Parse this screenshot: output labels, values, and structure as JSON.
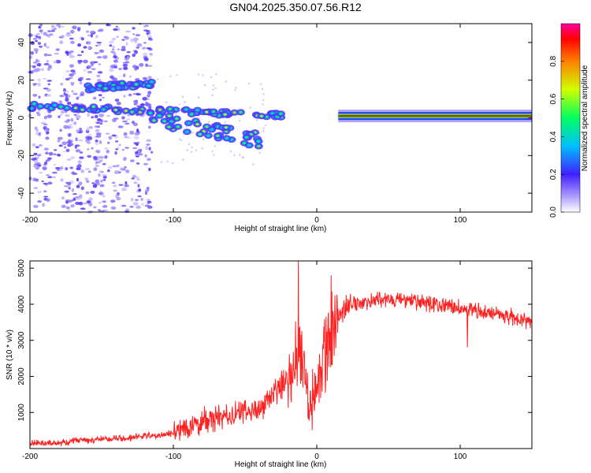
{
  "title": "GN04.2025.350.07.56.R12",
  "chart_data": [
    {
      "type": "heatmap",
      "xlabel": "Height of straight line (km)",
      "ylabel": "Frequency (Hz)",
      "xlim": [
        -200,
        150
      ],
      "ylim": [
        -50,
        50
      ],
      "xticks": [
        -200,
        -100,
        0,
        100
      ],
      "yticks": [
        -40,
        -20,
        0,
        20,
        40
      ],
      "colorbar": {
        "label": "Normalized spectral amplitude",
        "range": [
          0,
          1
        ],
        "ticks": [
          "0.0",
          "0.2",
          "0.4",
          "0.6",
          "0.8"
        ]
      },
      "features": [
        {
          "name": "noise-band",
          "x": [
            -200,
            -115
          ],
          "y": [
            -50,
            50
          ],
          "amplitude": 0.08
        },
        {
          "name": "upper-track",
          "x": [
            -160,
            -115
          ],
          "y": [
            16,
            18
          ],
          "amplitude": 0.45
        },
        {
          "name": "main-track",
          "x": [
            -200,
            -20
          ],
          "y": [
            6,
            1
          ],
          "amplitude": 0.55
        },
        {
          "name": "lower-branch",
          "x": [
            -115,
            -40
          ],
          "y": [
            -1,
            -12
          ],
          "amplitude": 0.5
        },
        {
          "name": "steady-line",
          "x": [
            15,
            150
          ],
          "y": [
            1,
            1
          ],
          "amplitude": 0.9
        }
      ]
    },
    {
      "type": "line",
      "xlabel": "Height of straight line (km)",
      "ylabel": "SNR (10 * v/v)",
      "xlim": [
        -200,
        150
      ],
      "ylim": [
        0,
        5200
      ],
      "xticks": [
        -200,
        -100,
        0,
        100
      ],
      "yticks": [
        1000,
        2000,
        3000,
        4000,
        5000
      ],
      "color": "#ff2020",
      "series": [
        {
          "name": "SNR",
          "x": [
            -200,
            -180,
            -165,
            -150,
            -130,
            -120,
            -110,
            -100,
            -90,
            -80,
            -70,
            -60,
            -50,
            -40,
            -30,
            -20,
            -15,
            -12,
            -8,
            -5,
            0,
            5,
            10,
            15,
            20,
            25,
            30,
            40,
            50,
            60,
            70,
            80,
            90,
            100,
            105,
            110,
            120,
            130,
            140,
            150
          ],
          "y": [
            150,
            150,
            250,
            250,
            300,
            350,
            350,
            450,
            600,
            750,
            850,
            900,
            1000,
            1100,
            1500,
            2000,
            2500,
            3000,
            2000,
            1500,
            1600,
            2500,
            3200,
            3700,
            3900,
            4000,
            4050,
            4100,
            4150,
            4100,
            4050,
            4000,
            3950,
            3900,
            3800,
            3850,
            3750,
            3700,
            3600,
            3500
          ]
        }
      ],
      "spikes": [
        {
          "x": -13,
          "y": 5200
        },
        {
          "x": 10,
          "y": 4800
        },
        {
          "x": 105,
          "y": 2800
        }
      ]
    }
  ]
}
